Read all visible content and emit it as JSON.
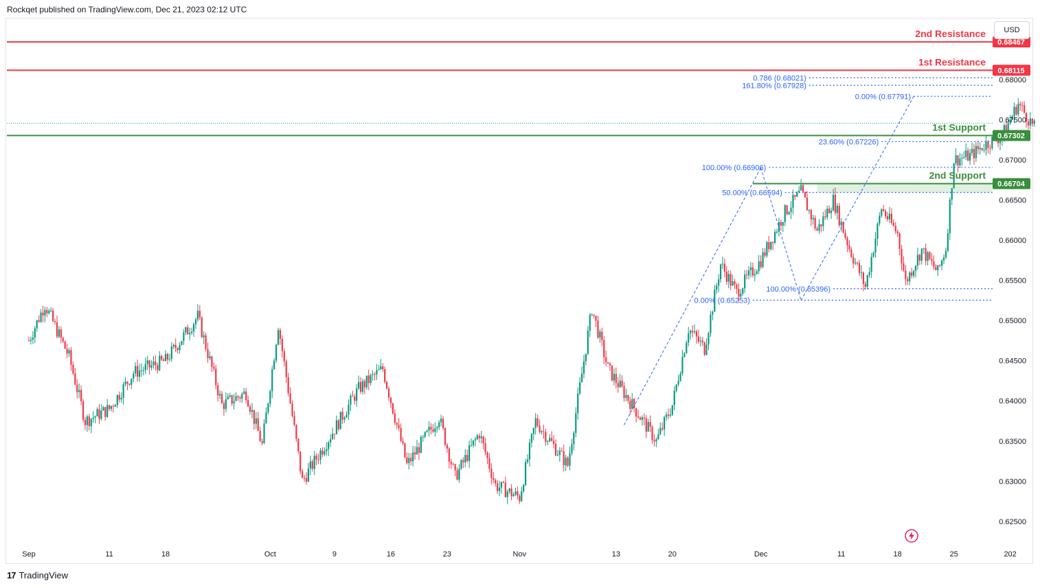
{
  "header": {
    "published_by": "Rockqet published on TradingView.com, Dec 21, 2023 02:12 UTC"
  },
  "footer": {
    "logo_text": "TradingView"
  },
  "currency_button": {
    "label": "USD"
  },
  "icons": {
    "flash": "lightning-bolt-icon"
  },
  "colors": {
    "up": "#089981",
    "down": "#f23645",
    "resistance": "#f23645",
    "support": "#388e3c",
    "fib": "#2962ff",
    "support_zone": "#c8e6c9"
  },
  "chart_data": {
    "type": "candlestick",
    "instrument_currency": "USD",
    "ylim": [
      0.622,
      0.6875
    ],
    "y_ticks": [
      "0.68000",
      "0.67500",
      "0.67000",
      "0.66500",
      "0.66000",
      "0.65500",
      "0.65000",
      "0.64500",
      "0.64000",
      "0.63500",
      "0.63000",
      "0.62500"
    ],
    "x_ticks": [
      {
        "label": "Sep",
        "day": 0
      },
      {
        "label": "11",
        "day": 10
      },
      {
        "label": "18",
        "day": 17
      },
      {
        "label": "Oct",
        "day": 30
      },
      {
        "label": "9",
        "day": 38
      },
      {
        "label": "16",
        "day": 45
      },
      {
        "label": "23",
        "day": 52
      },
      {
        "label": "Nov",
        "day": 61
      },
      {
        "label": "13",
        "day": 73
      },
      {
        "label": "20",
        "day": 80
      },
      {
        "label": "Dec",
        "day": 91
      },
      {
        "label": "11",
        "day": 101
      },
      {
        "label": "18",
        "day": 108
      },
      {
        "label": "25",
        "day": 115
      },
      {
        "label": "202",
        "day": 122
      }
    ],
    "horizontal_levels": [
      {
        "name": "2nd Resistance",
        "value": 0.68467,
        "value_label": "0.68467",
        "kind": "resistance"
      },
      {
        "name": "1st Resistance",
        "value": 0.68115,
        "value_label": "0.68115",
        "kind": "resistance"
      },
      {
        "name": "1st Support",
        "value": 0.67302,
        "value_label": "0.67302",
        "kind": "support"
      },
      {
        "name": "2nd Support",
        "value": 0.66704,
        "value_label": "0.66704",
        "kind": "support"
      }
    ],
    "last_price": 0.67455,
    "fib_levels": [
      {
        "label": "0.786 (0.68021)",
        "value": 0.68021,
        "day_start": 97
      },
      {
        "label": "161.80% (0.67928)",
        "value": 0.67928,
        "day_start": 97
      },
      {
        "label": "0.00% (0.67791)",
        "value": 0.67791,
        "day_start": 110
      },
      {
        "label": "23.60% (0.67226)",
        "value": 0.67226,
        "day_start": 106
      },
      {
        "label": "100.00% (0.66906)",
        "value": 0.66906,
        "day_start": 92
      },
      {
        "label": "50.00% (0.66594)",
        "value": 0.66594,
        "day_start": 94
      },
      {
        "label": "100.00% (0.65396)",
        "value": 0.65396,
        "day_start": 100
      },
      {
        "label": "0.00% (0.65253)",
        "value": 0.65253,
        "day_start": 90
      }
    ],
    "path_points": [
      [
        0,
        0.6475
      ],
      [
        2,
        0.652
      ],
      [
        5,
        0.6455
      ],
      [
        7,
        0.6375
      ],
      [
        10,
        0.639
      ],
      [
        13,
        0.6435
      ],
      [
        17,
        0.645
      ],
      [
        21,
        0.6505
      ],
      [
        24,
        0.6395
      ],
      [
        27,
        0.641
      ],
      [
        29,
        0.6345
      ],
      [
        31,
        0.6495
      ],
      [
        34,
        0.63
      ],
      [
        38,
        0.6365
      ],
      [
        41,
        0.6415
      ],
      [
        44,
        0.644
      ],
      [
        47,
        0.632
      ],
      [
        51,
        0.638
      ],
      [
        53,
        0.6305
      ],
      [
        56,
        0.636
      ],
      [
        58,
        0.6295
      ],
      [
        61,
        0.628
      ],
      [
        63,
        0.6375
      ],
      [
        67,
        0.632
      ],
      [
        70,
        0.6515
      ],
      [
        72,
        0.644
      ],
      [
        75,
        0.6395
      ],
      [
        78,
        0.635
      ],
      [
        80,
        0.6395
      ],
      [
        82,
        0.649
      ],
      [
        84,
        0.6465
      ],
      [
        86,
        0.657
      ],
      [
        88,
        0.6535
      ],
      [
        91,
        0.6575
      ],
      [
        94,
        0.6635
      ],
      [
        96,
        0.666
      ],
      [
        98,
        0.6612
      ],
      [
        100,
        0.665
      ],
      [
        102,
        0.659
      ],
      [
        104,
        0.6542
      ],
      [
        106,
        0.664
      ],
      [
        108,
        0.6608
      ],
      [
        109,
        0.6548
      ],
      [
        111,
        0.6588
      ],
      [
        113,
        0.656
      ],
      [
        114,
        0.659
      ],
      [
        115,
        0.67
      ],
      [
        117,
        0.6705
      ],
      [
        119,
        0.672
      ],
      [
        121,
        0.673
      ],
      [
        123,
        0.677
      ],
      [
        125,
        0.674
      ]
    ]
  }
}
